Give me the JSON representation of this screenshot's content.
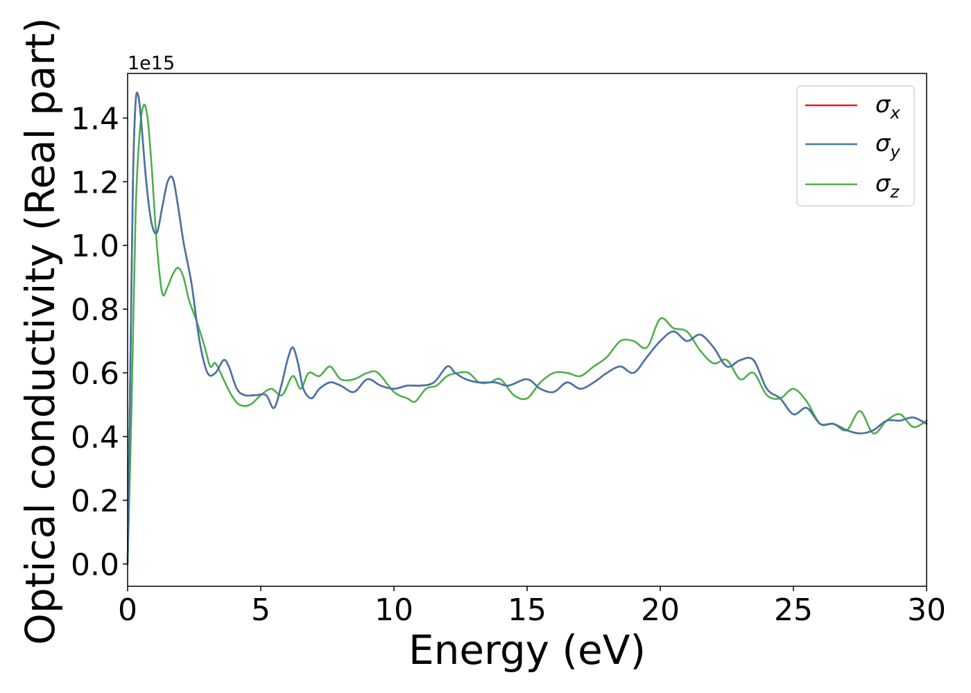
{
  "chart_data": {
    "type": "line",
    "xlabel": "Energy (eV)",
    "ylabel": "Optical conductivity (Real part)",
    "y_offset_text": "1e15",
    "xlim": [
      0,
      30
    ],
    "ylim": [
      -0.07,
      1.54
    ],
    "y_scale_factor": 1000000000000000.0,
    "xticks": [
      0,
      5,
      10,
      15,
      20,
      25,
      30
    ],
    "xtick_labels": [
      "0",
      "5",
      "10",
      "15",
      "20",
      "25",
      "30"
    ],
    "yticks": [
      0.0,
      0.2,
      0.4,
      0.6,
      0.8,
      1.0,
      1.2,
      1.4
    ],
    "ytick_labels": [
      "0.0",
      "0.2",
      "0.4",
      "0.6",
      "0.8",
      "1.0",
      "1.2",
      "1.4"
    ],
    "grid": false,
    "legend_placement": "top-right",
    "series": [
      {
        "name": "σx",
        "legend_symbol": "σ",
        "legend_subscript": "x",
        "color": "#e41a1c",
        "x": [
          0,
          0.1,
          0.2,
          0.3,
          0.4,
          0.5,
          0.7,
          0.9,
          1.1,
          1.3,
          1.5,
          1.7,
          1.9,
          2.1,
          2.4,
          2.7,
          3.0,
          3.3,
          3.6,
          3.8,
          4.1,
          4.4,
          4.8,
          5.2,
          5.5,
          5.8,
          6.0,
          6.2,
          6.4,
          6.6,
          6.9,
          7.2,
          7.6,
          8.0,
          8.5,
          9.0,
          9.5,
          10.0,
          10.5,
          11.0,
          11.5,
          12.0,
          12.3,
          12.7,
          13.2,
          13.8,
          14.3,
          15.0,
          15.5,
          16.0,
          16.5,
          17.0,
          17.5,
          18.0,
          18.5,
          19.0,
          19.5,
          20.0,
          20.5,
          21.0,
          21.5,
          22.0,
          22.5,
          23.0,
          23.5,
          24.0,
          24.5,
          25.0,
          25.5,
          26.0,
          26.5,
          27.0,
          27.5,
          28.0,
          28.5,
          29.0,
          29.5,
          30.0
        ],
        "y": [
          0.0,
          0.6,
          1.2,
          1.45,
          1.47,
          1.4,
          1.2,
          1.07,
          1.04,
          1.12,
          1.2,
          1.21,
          1.12,
          1.01,
          0.88,
          0.7,
          0.6,
          0.6,
          0.64,
          0.62,
          0.55,
          0.53,
          0.53,
          0.53,
          0.49,
          0.57,
          0.64,
          0.68,
          0.63,
          0.55,
          0.52,
          0.55,
          0.57,
          0.56,
          0.54,
          0.58,
          0.56,
          0.55,
          0.56,
          0.56,
          0.57,
          0.62,
          0.6,
          0.58,
          0.57,
          0.57,
          0.56,
          0.58,
          0.55,
          0.54,
          0.57,
          0.55,
          0.57,
          0.6,
          0.62,
          0.6,
          0.65,
          0.7,
          0.73,
          0.7,
          0.72,
          0.68,
          0.62,
          0.64,
          0.64,
          0.55,
          0.52,
          0.47,
          0.49,
          0.44,
          0.44,
          0.42,
          0.41,
          0.42,
          0.45,
          0.45,
          0.46,
          0.44
        ]
      },
      {
        "name": "σy",
        "legend_symbol": "σ",
        "legend_subscript": "y",
        "color": "#4577aa",
        "x": [
          0,
          0.1,
          0.2,
          0.3,
          0.4,
          0.5,
          0.7,
          0.9,
          1.1,
          1.3,
          1.5,
          1.7,
          1.9,
          2.1,
          2.4,
          2.7,
          3.0,
          3.3,
          3.6,
          3.8,
          4.1,
          4.4,
          4.8,
          5.2,
          5.5,
          5.8,
          6.0,
          6.2,
          6.4,
          6.6,
          6.9,
          7.2,
          7.6,
          8.0,
          8.5,
          9.0,
          9.5,
          10.0,
          10.5,
          11.0,
          11.5,
          12.0,
          12.3,
          12.7,
          13.2,
          13.8,
          14.3,
          15.0,
          15.5,
          16.0,
          16.5,
          17.0,
          17.5,
          18.0,
          18.5,
          19.0,
          19.5,
          20.0,
          20.5,
          21.0,
          21.5,
          22.0,
          22.5,
          23.0,
          23.5,
          24.0,
          24.5,
          25.0,
          25.5,
          26.0,
          26.5,
          27.0,
          27.5,
          28.0,
          28.5,
          29.0,
          29.5,
          30.0
        ],
        "y": [
          0.0,
          0.6,
          1.2,
          1.45,
          1.47,
          1.4,
          1.2,
          1.07,
          1.04,
          1.12,
          1.2,
          1.21,
          1.12,
          1.01,
          0.88,
          0.7,
          0.6,
          0.6,
          0.64,
          0.62,
          0.55,
          0.53,
          0.53,
          0.53,
          0.49,
          0.57,
          0.64,
          0.68,
          0.63,
          0.55,
          0.52,
          0.55,
          0.57,
          0.56,
          0.54,
          0.58,
          0.56,
          0.55,
          0.56,
          0.56,
          0.57,
          0.62,
          0.6,
          0.58,
          0.57,
          0.57,
          0.56,
          0.58,
          0.55,
          0.54,
          0.57,
          0.55,
          0.57,
          0.6,
          0.62,
          0.6,
          0.65,
          0.7,
          0.73,
          0.7,
          0.72,
          0.68,
          0.62,
          0.64,
          0.64,
          0.55,
          0.52,
          0.47,
          0.49,
          0.44,
          0.44,
          0.42,
          0.41,
          0.42,
          0.45,
          0.45,
          0.46,
          0.44
        ]
      },
      {
        "name": "σz",
        "legend_symbol": "σ",
        "legend_subscript": "z",
        "color": "#4daf4a",
        "x": [
          0,
          0.15,
          0.3,
          0.45,
          0.6,
          0.75,
          0.9,
          1.1,
          1.3,
          1.5,
          1.7,
          1.9,
          2.1,
          2.3,
          2.6,
          2.9,
          3.1,
          3.3,
          3.6,
          3.9,
          4.2,
          4.6,
          5.0,
          5.4,
          5.8,
          6.2,
          6.5,
          6.8,
          7.2,
          7.6,
          8.0,
          8.5,
          9.0,
          9.4,
          10.0,
          10.5,
          10.8,
          11.2,
          11.6,
          12.0,
          12.4,
          12.8,
          13.2,
          13.6,
          14.0,
          14.5,
          15.0,
          15.5,
          16.0,
          16.5,
          17.0,
          17.5,
          18.0,
          18.5,
          19.0,
          19.5,
          20.0,
          20.5,
          21.0,
          21.5,
          22.0,
          22.5,
          23.0,
          23.5,
          24.0,
          24.5,
          25.0,
          25.5,
          26.0,
          26.5,
          27.0,
          27.5,
          28.0,
          28.5,
          29.0,
          29.5,
          30.0
        ],
        "y": [
          0.0,
          0.5,
          1.1,
          1.35,
          1.44,
          1.4,
          1.25,
          1.0,
          0.85,
          0.87,
          0.91,
          0.93,
          0.9,
          0.83,
          0.76,
          0.68,
          0.62,
          0.63,
          0.58,
          0.53,
          0.5,
          0.5,
          0.53,
          0.55,
          0.53,
          0.59,
          0.55,
          0.6,
          0.59,
          0.62,
          0.58,
          0.58,
          0.6,
          0.6,
          0.54,
          0.52,
          0.51,
          0.55,
          0.56,
          0.59,
          0.6,
          0.6,
          0.57,
          0.57,
          0.58,
          0.53,
          0.52,
          0.57,
          0.6,
          0.6,
          0.59,
          0.62,
          0.65,
          0.7,
          0.7,
          0.68,
          0.77,
          0.74,
          0.73,
          0.67,
          0.63,
          0.64,
          0.58,
          0.6,
          0.53,
          0.52,
          0.55,
          0.51,
          0.44,
          0.44,
          0.42,
          0.48,
          0.41,
          0.45,
          0.47,
          0.43,
          0.45
        ]
      }
    ]
  }
}
